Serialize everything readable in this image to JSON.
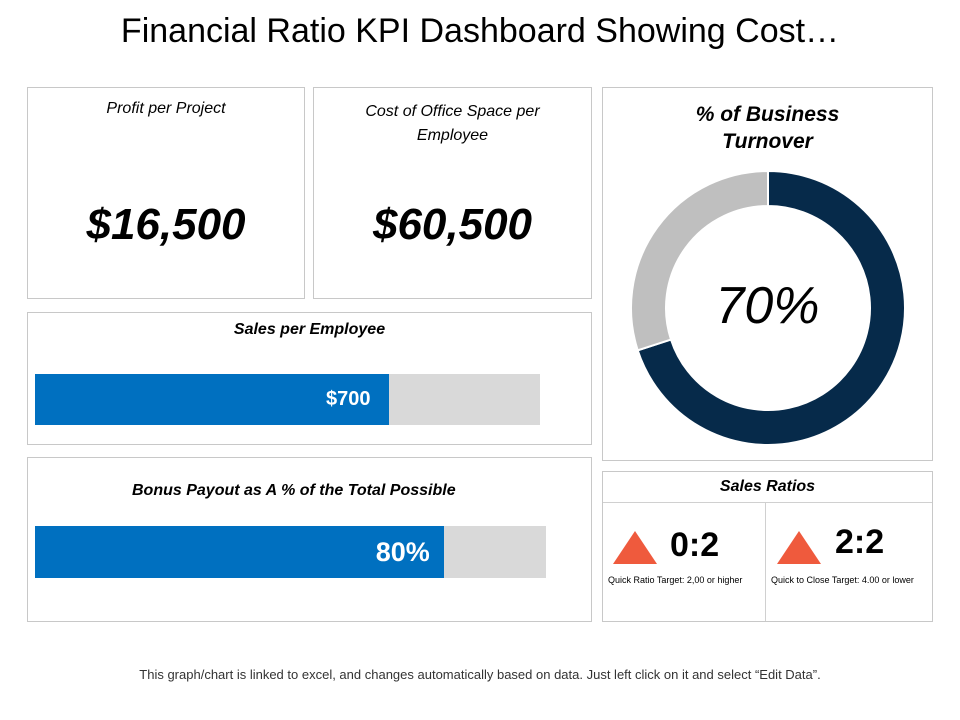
{
  "page_title": "Financial Ratio KPI Dashboard Showing Cost…",
  "profit": {
    "label": "Profit per Project",
    "value": "$16,500"
  },
  "office_cost": {
    "label": "Cost of Office Space per Employee",
    "value": "$60,500"
  },
  "sales_per_employee": {
    "label": "Sales per Employee",
    "value": "$700",
    "fill_percent": 70
  },
  "bonus": {
    "label": "Bonus Payout as A % of the Total Possible",
    "value": "80%",
    "fill_percent": 80
  },
  "chart_data": {
    "type": "pie",
    "title": "% of Business Turnover",
    "center_label": "70%",
    "values": [
      70,
      30
    ],
    "colors": [
      "#062a4a",
      "#bfbfbf"
    ]
  },
  "sales_ratios": {
    "title": "Sales Ratios",
    "items": [
      {
        "value": "0:2",
        "caption": "Quick Ratio Target: 2,00 or higher",
        "icon": "triangle-up-icon"
      },
      {
        "value": "2:2",
        "caption": "Quick to Close Target: 4.00 or lower",
        "icon": "triangle-up-icon"
      }
    ]
  },
  "colors": {
    "bar": "#0070c0",
    "bar_bg": "#d9d9d9",
    "indicator": "#ef5a3d"
  },
  "footer": "This graph/chart is linked to excel, and changes automatically based on data. Just left click on it and select “Edit Data”."
}
